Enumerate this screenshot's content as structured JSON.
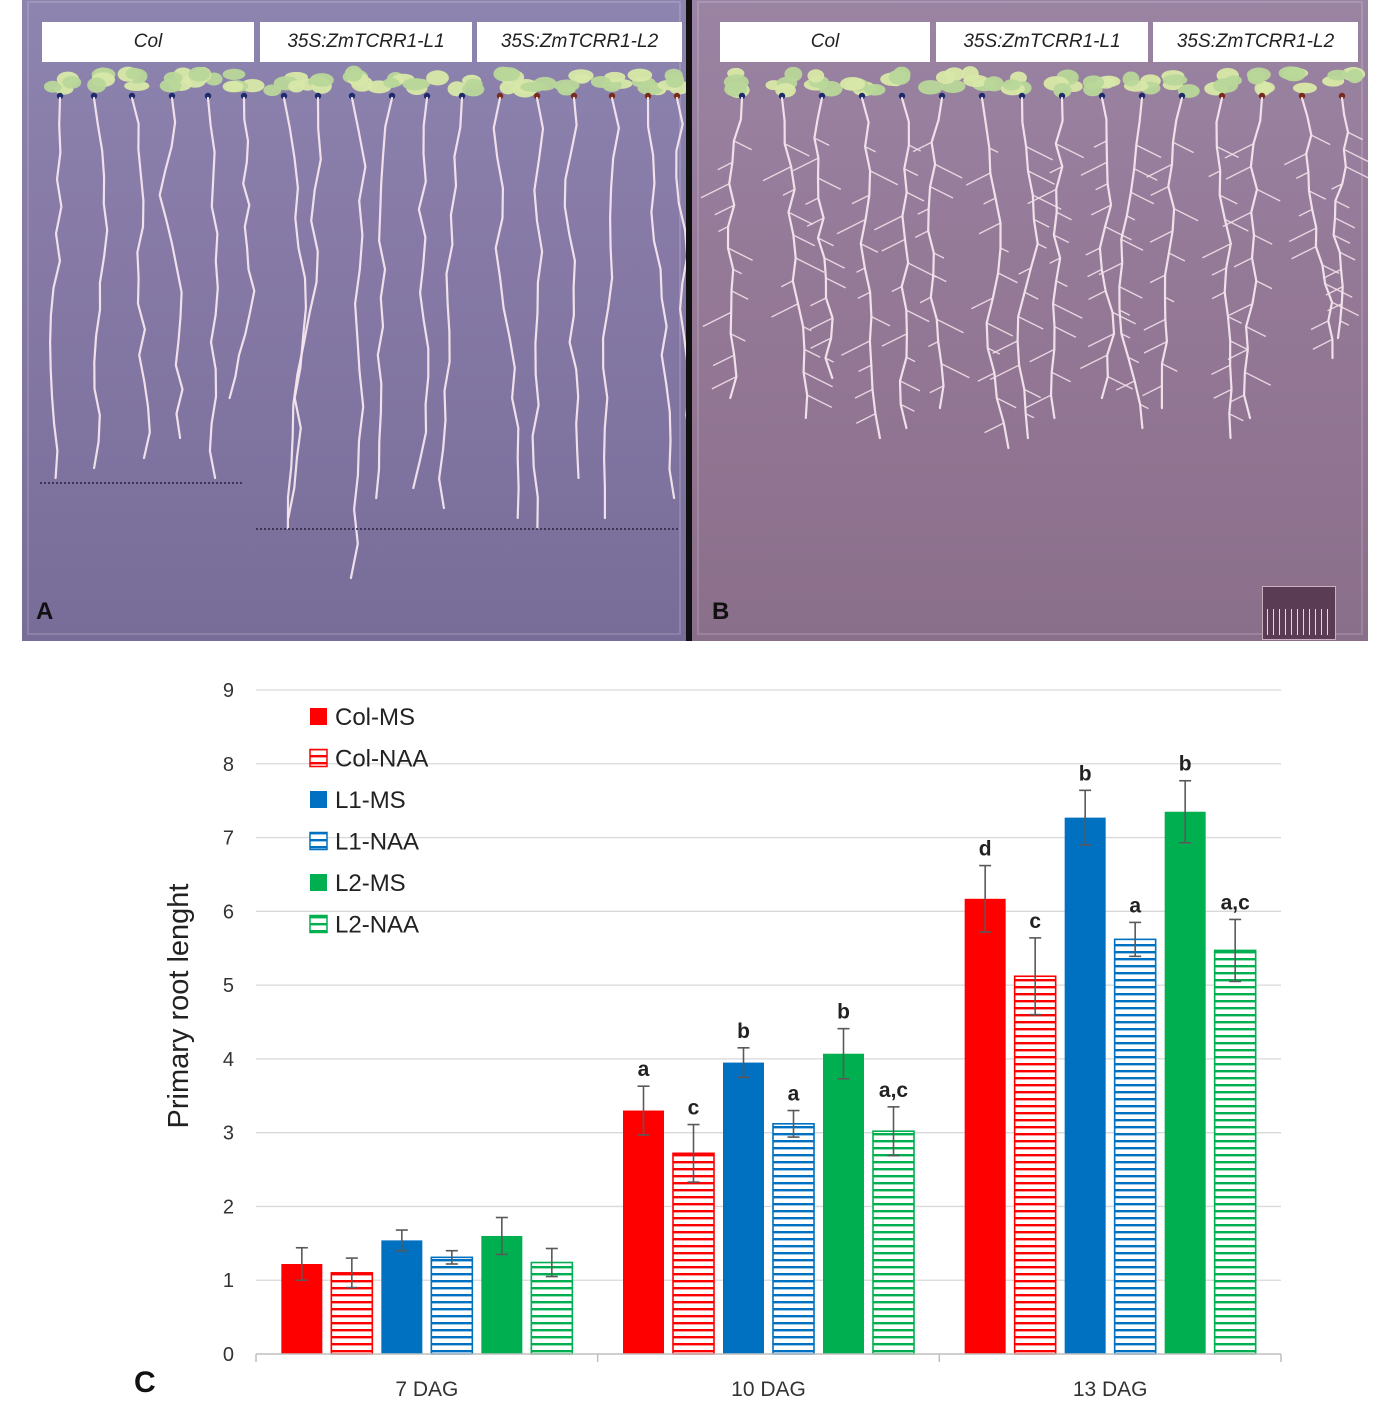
{
  "panels": {
    "a": {
      "letter": "A",
      "labels": [
        "Col",
        "35S:ZmTCRR1-L1",
        "35S:ZmTCRR1-L2"
      ]
    },
    "b": {
      "letter": "B",
      "labels": [
        "Col",
        "35S:ZmTCRR1-L1",
        "35S:ZmTCRR1-L2"
      ]
    }
  },
  "colors": {
    "col": "#ff0000",
    "l1": "#0070c0",
    "l2": "#00b050",
    "grid": "#d9d9d9",
    "axis": "#bfbfbf",
    "error": "#595959"
  },
  "chart_data": {
    "type": "bar",
    "panel_letter": "C",
    "title": "",
    "xlabel": "",
    "ylabel": "Primary root lenght",
    "ylim": [
      0,
      9
    ],
    "yticks": [
      0,
      1,
      2,
      3,
      4,
      5,
      6,
      7,
      8,
      9
    ],
    "grid": true,
    "legend_position": "top-left",
    "categories": [
      "7 DAG",
      "10 DAG",
      "13 DAG"
    ],
    "series": [
      {
        "name": "Col-MS",
        "color": "#ff0000",
        "pattern": "solid",
        "values": [
          1.22,
          3.3,
          6.17
        ],
        "errors": [
          0.22,
          0.33,
          0.45
        ],
        "letters": [
          "",
          "a",
          "d"
        ]
      },
      {
        "name": "Col-NAA",
        "color": "#ff0000",
        "pattern": "striped",
        "values": [
          1.1,
          2.72,
          5.12
        ],
        "errors": [
          0.2,
          0.39,
          0.52
        ],
        "letters": [
          "",
          "c",
          "c"
        ]
      },
      {
        "name": "L1-MS",
        "color": "#0070c0",
        "pattern": "solid",
        "values": [
          1.54,
          3.95,
          7.27
        ],
        "errors": [
          0.14,
          0.2,
          0.37
        ],
        "letters": [
          "",
          "b",
          "b"
        ]
      },
      {
        "name": "L1-NAA",
        "color": "#0070c0",
        "pattern": "striped",
        "values": [
          1.31,
          3.12,
          5.62
        ],
        "errors": [
          0.09,
          0.18,
          0.23
        ],
        "letters": [
          "",
          "a",
          "a"
        ]
      },
      {
        "name": "L2-MS",
        "color": "#00b050",
        "pattern": "solid",
        "values": [
          1.6,
          4.07,
          7.35
        ],
        "errors": [
          0.25,
          0.34,
          0.42
        ],
        "letters": [
          "",
          "b",
          "b"
        ]
      },
      {
        "name": "L2-NAA",
        "color": "#00b050",
        "pattern": "striped",
        "values": [
          1.24,
          3.02,
          5.47
        ],
        "errors": [
          0.19,
          0.33,
          0.42
        ],
        "letters": [
          "",
          "a,c",
          "a,c"
        ]
      }
    ]
  }
}
